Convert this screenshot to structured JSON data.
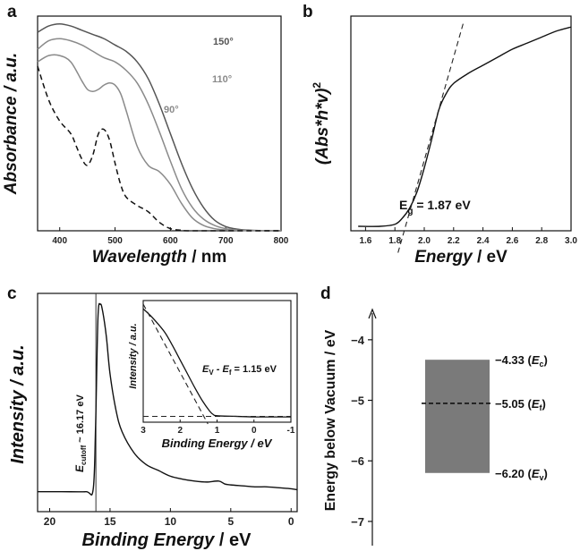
{
  "panels": {
    "a": {
      "letter": "a"
    },
    "b": {
      "letter": "b"
    },
    "c": {
      "letter": "c"
    },
    "d": {
      "letter": "d"
    }
  },
  "chart_data": [
    {
      "id": "a",
      "type": "line",
      "xlabel_main": "Wavelength",
      "xlabel_unit": " / nm",
      "ylabel": "Absorbance / a.u.",
      "xlim": [
        360,
        800
      ],
      "ylim": [
        0,
        1.0
      ],
      "xticks": [
        400,
        500,
        600,
        700,
        800
      ],
      "series": [
        {
          "name": "150°",
          "color": "#555555",
          "dash": false,
          "x": [
            360,
            380,
            400,
            420,
            440,
            460,
            480,
            500,
            520,
            540,
            560,
            580,
            600,
            620,
            640,
            660,
            680,
            700,
            720,
            740,
            760,
            800
          ],
          "y": [
            0.94,
            0.97,
            0.98,
            0.97,
            0.95,
            0.93,
            0.91,
            0.88,
            0.85,
            0.8,
            0.72,
            0.6,
            0.46,
            0.32,
            0.2,
            0.11,
            0.05,
            0.02,
            0.008,
            0.003,
            0.001,
            0.0
          ]
        },
        {
          "name": "110°",
          "color": "#8a8a8a",
          "dash": false,
          "x": [
            360,
            380,
            400,
            420,
            440,
            460,
            480,
            500,
            520,
            540,
            560,
            580,
            600,
            620,
            640,
            660,
            680,
            700,
            720,
            740,
            800
          ],
          "y": [
            0.86,
            0.9,
            0.91,
            0.9,
            0.88,
            0.85,
            0.82,
            0.8,
            0.76,
            0.7,
            0.6,
            0.47,
            0.33,
            0.2,
            0.11,
            0.055,
            0.025,
            0.01,
            0.004,
            0.001,
            0.0
          ]
        },
        {
          "name": "90°",
          "color": "#8a8a8a",
          "dash": false,
          "x": [
            360,
            380,
            400,
            420,
            440,
            450,
            460,
            470,
            480,
            490,
            500,
            510,
            520,
            540,
            560,
            580,
            600,
            620,
            640,
            660,
            680,
            700,
            740,
            800
          ],
          "y": [
            0.8,
            0.83,
            0.83,
            0.8,
            0.71,
            0.67,
            0.66,
            0.67,
            0.69,
            0.7,
            0.69,
            0.65,
            0.57,
            0.4,
            0.31,
            0.28,
            0.22,
            0.13,
            0.06,
            0.025,
            0.01,
            0.004,
            0.001,
            0.0
          ]
        },
        {
          "name": "",
          "color": "#111111",
          "dash": true,
          "x": [
            360,
            380,
            400,
            420,
            430,
            440,
            450,
            460,
            470,
            480,
            490,
            500,
            510,
            520,
            540,
            560,
            580,
            600,
            620,
            640,
            800
          ],
          "y": [
            0.78,
            0.62,
            0.52,
            0.46,
            0.4,
            0.34,
            0.31,
            0.36,
            0.46,
            0.48,
            0.43,
            0.32,
            0.22,
            0.16,
            0.12,
            0.09,
            0.04,
            0.01,
            0.003,
            0.0,
            0.0
          ]
        }
      ],
      "labels": [
        "150°",
        "110°",
        "90°"
      ]
    },
    {
      "id": "b",
      "type": "line",
      "xlabel_main": "Energy",
      "xlabel_unit": " / eV",
      "ylabel": "(Abs*h*v)",
      "ylabel_sup": "2",
      "xlim": [
        1.5,
        3.0
      ],
      "ylim": [
        0,
        1.0
      ],
      "xticks": [
        1.6,
        1.8,
        2.0,
        2.2,
        2.4,
        2.6,
        2.8,
        3.0
      ],
      "xtick_labels": [
        "1.6",
        "1.8",
        "2.0",
        "2.2",
        "2.4",
        "2.6",
        "2.8",
        "3.0"
      ],
      "series": [
        {
          "name": "",
          "color": "#111111",
          "dash": false,
          "x": [
            1.55,
            1.7,
            1.8,
            1.85,
            1.9,
            1.95,
            2.0,
            2.05,
            2.1,
            2.15,
            2.2,
            2.3,
            2.4,
            2.5,
            2.6,
            2.7,
            2.8,
            2.9,
            3.0
          ],
          "y": [
            0.0,
            0.0,
            0.01,
            0.04,
            0.09,
            0.17,
            0.29,
            0.43,
            0.58,
            0.66,
            0.71,
            0.76,
            0.8,
            0.84,
            0.88,
            0.91,
            0.94,
            0.97,
            0.99
          ]
        }
      ],
      "fit_line": {
        "x": [
          1.87,
          2.27
        ],
        "y": [
          -0.06,
          1.02
        ]
      },
      "annotation_main": "E",
      "annotation_sub": "g",
      "annotation_value": " = 1.87 eV"
    },
    {
      "id": "c",
      "type": "line",
      "xlabel_main": "Binding Energy",
      "xlabel_unit": " / eV",
      "ylabel": "Intensity / a.u.",
      "xlim": [
        21,
        -0.5
      ],
      "ylim": [
        0,
        1.0
      ],
      "xticks": [
        20,
        15,
        10,
        5,
        0
      ],
      "series": [
        {
          "name": "",
          "color": "#111111",
          "dash": false,
          "x": [
            21,
            19,
            17,
            16.4,
            16.2,
            16.0,
            15.8,
            15.6,
            15.3,
            15.0,
            14.5,
            14.0,
            13.0,
            12.0,
            11.0,
            10.0,
            9.0,
            8.0,
            7.0,
            6.0,
            5.5,
            5.0,
            4.0,
            3.0,
            2.0,
            1.0,
            0.0,
            -0.5
          ],
          "y": [
            0.02,
            0.02,
            0.02,
            0.03,
            0.35,
            0.92,
            0.99,
            0.95,
            0.82,
            0.63,
            0.44,
            0.33,
            0.22,
            0.16,
            0.13,
            0.1,
            0.085,
            0.075,
            0.07,
            0.075,
            0.06,
            0.055,
            0.05,
            0.045,
            0.045,
            0.04,
            0.035,
            0.03
          ]
        }
      ],
      "cutoff_x": 16.17,
      "annotation_main": "E",
      "annotation_sub": "cutoff",
      "annotation_value": " ~ 16.17 eV"
    },
    {
      "id": "c-inset",
      "type": "line",
      "xlabel": "Binding Energy / eV",
      "ylabel": "Intensity / a.u.",
      "xlim": [
        3,
        -1
      ],
      "ylim": [
        0,
        1.0
      ],
      "xticks": [
        3,
        2,
        1,
        0,
        -1
      ],
      "series": [
        {
          "name": "",
          "color": "#111111",
          "dash": false,
          "x": [
            3.0,
            2.8,
            2.6,
            2.4,
            2.2,
            2.0,
            1.8,
            1.6,
            1.4,
            1.2,
            1.1,
            1.0,
            0.5,
            0.0,
            -0.5,
            -1.0
          ],
          "y": [
            0.96,
            0.9,
            0.83,
            0.75,
            0.64,
            0.52,
            0.4,
            0.28,
            0.17,
            0.08,
            0.05,
            0.04,
            0.035,
            0.03,
            0.03,
            0.03
          ]
        }
      ],
      "fit_line": {
        "x": [
          3.0,
          1.15
        ],
        "y": [
          1.0,
          0.0
        ]
      },
      "baseline_y": 0.035,
      "annotation_main1": "E",
      "annotation_sub1": "V",
      "annotation_mid": " - E",
      "annotation_sub2": "f",
      "annotation_value": " = 1.15 eV"
    },
    {
      "id": "d",
      "type": "other",
      "ylabel": "Energy below Vacuum / eV",
      "ylim": [
        -7.4,
        -3.5
      ],
      "yticks": [
        -4,
        -5,
        -6,
        -7
      ],
      "ytick_labels": [
        "−4",
        "−5",
        "−6",
        "−7"
      ],
      "band": {
        "top": -4.33,
        "bottom": -6.2,
        "fermi": -5.05,
        "color": "#7a7a7a"
      },
      "levels": [
        {
          "value": "−4.33",
          "symbol": "E",
          "sub": "c",
          "y": -4.33
        },
        {
          "value": "−5.05",
          "symbol": "E",
          "sub": "f",
          "y": -5.05
        },
        {
          "value": "−6.20",
          "symbol": "E",
          "sub": "v",
          "y": -6.2
        }
      ]
    }
  ]
}
